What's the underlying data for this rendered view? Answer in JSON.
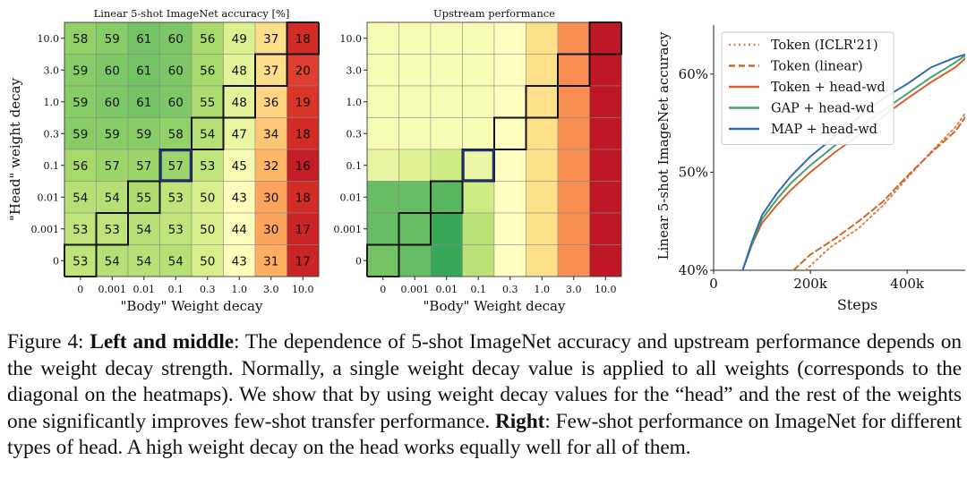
{
  "chart_data": [
    {
      "type": "heatmap",
      "title": "Linear 5-shot ImageNet accuracy [%]",
      "xlabel": "\"Body\" Weight decay",
      "ylabel": "\"Head\" weight decay",
      "x_ticks": [
        "0",
        "0.001",
        "0.01",
        "0.1",
        "0.3",
        "1.0",
        "3.0",
        "10.0"
      ],
      "y_ticks": [
        "10.0",
        "3.0",
        "1.0",
        "0.3",
        "0.1",
        "0.01",
        "0.001",
        "0"
      ],
      "values": [
        [
          58,
          59,
          61,
          60,
          56,
          49,
          37,
          18
        ],
        [
          59,
          60,
          61,
          60,
          56,
          48,
          37,
          20
        ],
        [
          59,
          60,
          61,
          60,
          55,
          48,
          36,
          19
        ],
        [
          59,
          59,
          59,
          58,
          54,
          47,
          34,
          18
        ],
        [
          56,
          57,
          57,
          57,
          53,
          45,
          32,
          16
        ],
        [
          54,
          54,
          55,
          53,
          50,
          43,
          30,
          18
        ],
        [
          53,
          53,
          54,
          53,
          50,
          44,
          30,
          17
        ],
        [
          53,
          54,
          54,
          54,
          50,
          43,
          31,
          17
        ]
      ],
      "diagonal_outline": true,
      "highlight_cell": {
        "row": 4,
        "col": 3
      }
    },
    {
      "type": "heatmap",
      "title": "Upstream performance",
      "xlabel": "\"Body\" Weight decay",
      "x_ticks": [
        "0",
        "0.001",
        "0.01",
        "0.1",
        "0.3",
        "1.0",
        "3.0",
        "10.0"
      ],
      "y_ticks": [
        "10.0",
        "3.0",
        "1.0",
        "0.3",
        "0.1",
        "0.01",
        "0.001",
        "0"
      ],
      "relative_values": [
        [
          0.52,
          0.52,
          0.52,
          0.52,
          0.5,
          0.4,
          0.25,
          0.05
        ],
        [
          0.52,
          0.52,
          0.52,
          0.52,
          0.5,
          0.4,
          0.25,
          0.05
        ],
        [
          0.52,
          0.52,
          0.52,
          0.52,
          0.5,
          0.4,
          0.25,
          0.05
        ],
        [
          0.52,
          0.52,
          0.52,
          0.52,
          0.5,
          0.4,
          0.25,
          0.05
        ],
        [
          0.56,
          0.58,
          0.62,
          0.55,
          0.5,
          0.4,
          0.25,
          0.05
        ],
        [
          0.8,
          0.8,
          0.82,
          0.62,
          0.5,
          0.4,
          0.25,
          0.05
        ],
        [
          0.8,
          0.8,
          0.86,
          0.66,
          0.5,
          0.4,
          0.25,
          0.05
        ],
        [
          0.78,
          0.8,
          0.86,
          0.66,
          0.5,
          0.4,
          0.25,
          0.05
        ]
      ],
      "diagonal_outline": true,
      "highlight_cell": {
        "row": 4,
        "col": 3
      }
    },
    {
      "type": "line",
      "xlabel": "Steps",
      "ylabel": "Linear 5-shot ImageNet accuracy",
      "x_ticks": [
        {
          "value": 0,
          "label": "0"
        },
        {
          "value": 200000,
          "label": "200k"
        },
        {
          "value": 400000,
          "label": "400k"
        }
      ],
      "y_ticks": [
        {
          "value": 40,
          "label": "40%"
        },
        {
          "value": 50,
          "label": "50%"
        },
        {
          "value": 60,
          "label": "60%"
        }
      ],
      "xlim": [
        0,
        520000
      ],
      "ylim": [
        40,
        65
      ],
      "legend_position": "top-left",
      "series": [
        {
          "name": "Token (ICLR'21)",
          "color": "#dd8452",
          "dash": "dotted",
          "x": [
            190000,
            240000,
            300000,
            350000,
            400000,
            450000,
            500000,
            520000
          ],
          "values": [
            40,
            42.3,
            44.3,
            46.6,
            49.4,
            52.1,
            54.6,
            56.0
          ]
        },
        {
          "name": "Token (linear)",
          "color": "#cc6a2a",
          "dash": "dashed",
          "x": [
            165000,
            200000,
            250000,
            300000,
            350000,
            400000,
            450000,
            500000,
            520000
          ],
          "values": [
            40,
            41.6,
            43.2,
            45.0,
            47.0,
            49.6,
            52.0,
            54.2,
            55.6
          ]
        },
        {
          "name": "Token + head-wd",
          "color": "#d65f2a",
          "dash": "solid",
          "x": [
            60000,
            80000,
            100000,
            130000,
            160000,
            200000,
            250000,
            300000,
            350000,
            400000,
            450000,
            500000,
            520000
          ],
          "values": [
            40,
            42.7,
            44.8,
            46.6,
            48.2,
            50.0,
            52.0,
            53.8,
            55.7,
            57.5,
            59.2,
            60.7,
            61.6
          ]
        },
        {
          "name": "GAP + head-wd",
          "color": "#4c9f70",
          "dash": "solid",
          "x": [
            60000,
            80000,
            100000,
            130000,
            160000,
            200000,
            250000,
            300000,
            350000,
            400000,
            450000,
            500000,
            520000
          ],
          "values": [
            40,
            42.8,
            45.2,
            47.2,
            48.9,
            50.7,
            52.7,
            54.5,
            56.3,
            58.0,
            59.7,
            61.2,
            61.9
          ]
        },
        {
          "name": "MAP + head-wd",
          "color": "#2c6fb0",
          "dash": "solid",
          "x": [
            60000,
            80000,
            100000,
            130000,
            160000,
            200000,
            250000,
            300000,
            350000,
            400000,
            450000,
            500000,
            520000
          ],
          "values": [
            40,
            43.0,
            45.6,
            47.8,
            49.6,
            51.6,
            53.6,
            55.6,
            57.5,
            59.0,
            60.7,
            61.7,
            62.0
          ]
        }
      ]
    }
  ],
  "caption": {
    "label": "Figure 4:",
    "bold1": "Left and middle",
    "text1": ": The dependence of 5-shot ImageNet accuracy and upstream performance depends on the weight decay strength. Normally, a single weight decay value is applied to all weights (corresponds to the diagonal on the heatmaps). We show that by using weight decay values for the “head” and the rest of the weights one significantly improves few-shot transfer performance. ",
    "bold2": "Right",
    "text2": ": Few-shot performance on ImageNet for different types of head. A high weight decay on the head works equally well for all of them."
  }
}
